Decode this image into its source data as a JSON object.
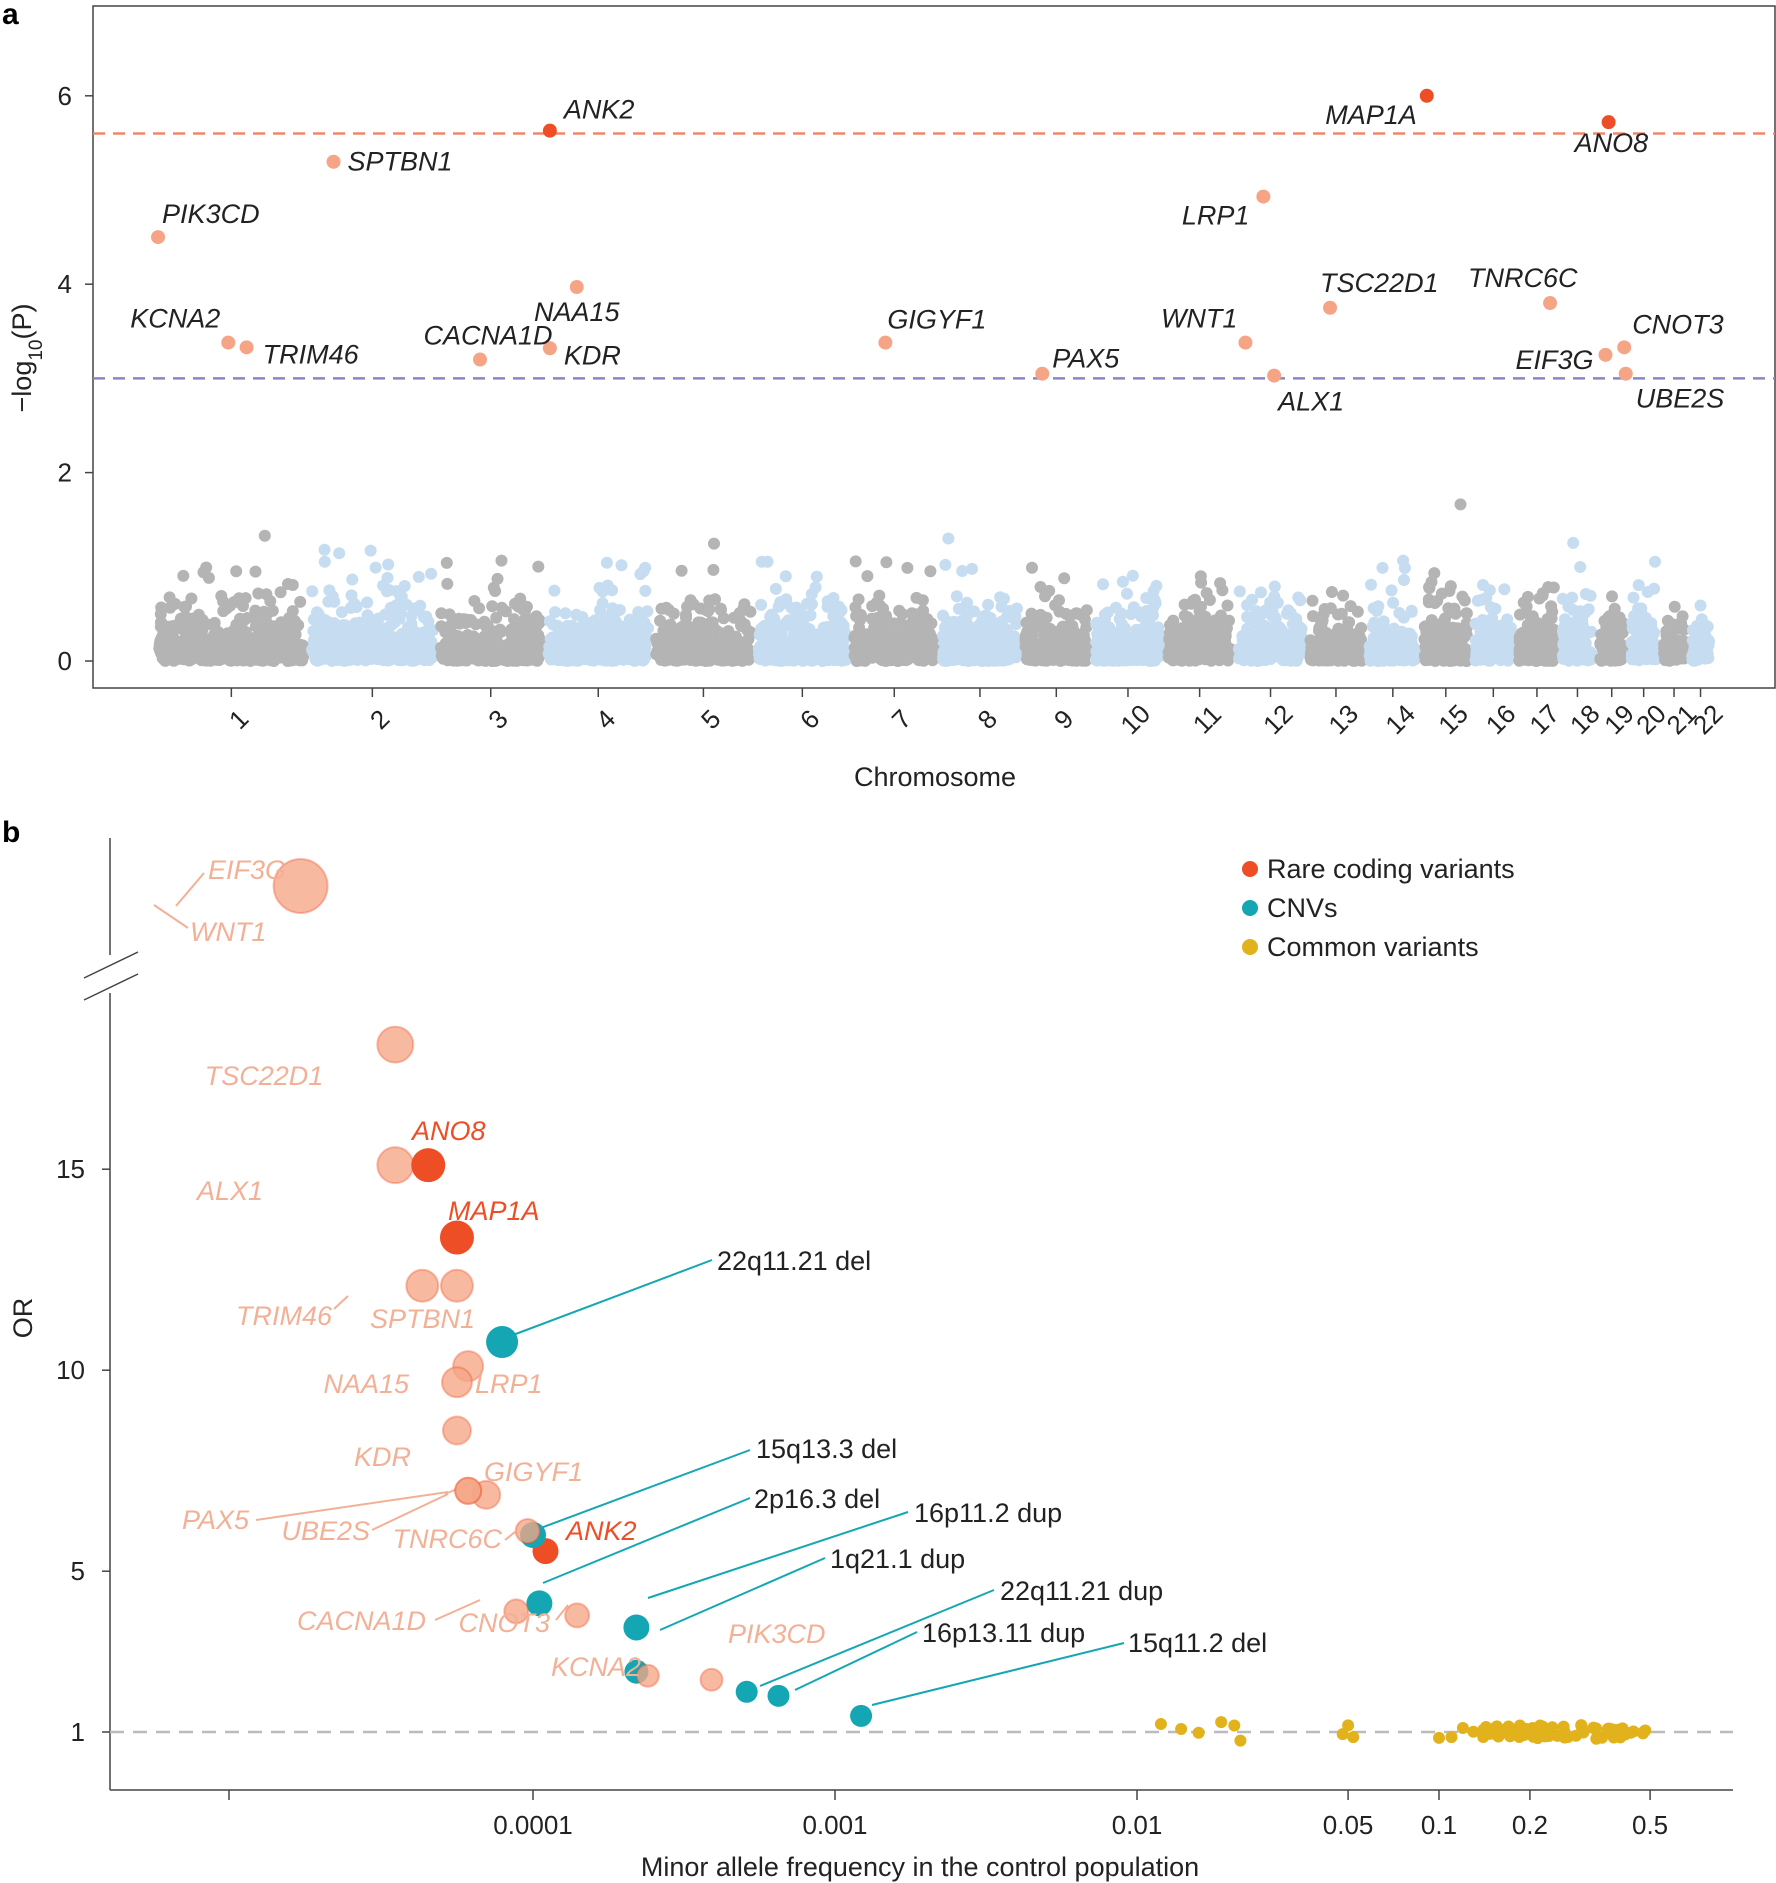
{
  "colors": {
    "rare": "#ee4e26",
    "rare_light": "#f5a585",
    "rare_text_light": "#f2b196",
    "cnv": "#14a7b3",
    "common": "#e1b21b",
    "chr_gray": "#b4b4b4",
    "chr_blue": "#c6dcf0",
    "sig_line": "#f0876b",
    "sugg_line": "#8a86c8",
    "null_line": "#bbbbbb"
  },
  "panel_a": {
    "label": "a",
    "ylabel_pre": "−log",
    "ylabel_sub": "10",
    "ylabel_post": "(P)",
    "xlabel": "Chromosome",
    "yticks": [
      "0",
      "2",
      "4",
      "6"
    ],
    "ylim": [
      0,
      6.8
    ],
    "significance_line": 5.6,
    "suggestive_line": 3.0,
    "chromosome_labels": [
      "1",
      "2",
      "3",
      "4",
      "5",
      "6",
      "7",
      "8",
      "9",
      "10",
      "11",
      "12",
      "13",
      "14",
      "15",
      "16",
      "17",
      "18",
      "19",
      "20",
      "21",
      "22"
    ],
    "chromosome_spans": [
      [
        0.0,
        0.098
      ],
      [
        0.098,
        0.181
      ],
      [
        0.181,
        0.25
      ],
      [
        0.25,
        0.319
      ],
      [
        0.319,
        0.385
      ],
      [
        0.385,
        0.446
      ],
      [
        0.446,
        0.503
      ],
      [
        0.503,
        0.556
      ],
      [
        0.556,
        0.601
      ],
      [
        0.601,
        0.648
      ],
      [
        0.648,
        0.693
      ],
      [
        0.693,
        0.739
      ],
      [
        0.739,
        0.777
      ],
      [
        0.777,
        0.812
      ],
      [
        0.812,
        0.845
      ],
      [
        0.845,
        0.873
      ],
      [
        0.873,
        0.901
      ],
      [
        0.901,
        0.925
      ],
      [
        0.925,
        0.945
      ],
      [
        0.945,
        0.966
      ],
      [
        0.966,
        0.984
      ],
      [
        0.984,
        1.0
      ]
    ],
    "genes": [
      {
        "name": "ANK2",
        "chr": 4,
        "pos": 0.05,
        "p": 5.63,
        "status": "sig"
      },
      {
        "name": "MAP1A",
        "chr": 15,
        "pos": 0.13,
        "p": 6.0,
        "status": "sig"
      },
      {
        "name": "ANO8",
        "chr": 19,
        "pos": 0.4,
        "p": 5.72,
        "status": "sig"
      },
      {
        "name": "SPTBN1",
        "chr": 2,
        "pos": 0.2,
        "p": 5.3,
        "status": "sugg"
      },
      {
        "name": "PIK3CD",
        "chr": 1,
        "pos": 0.02,
        "p": 4.5,
        "status": "sugg"
      },
      {
        "name": "LRP1",
        "chr": 12,
        "pos": 0.4,
        "p": 4.93,
        "status": "sugg"
      },
      {
        "name": "KCNA2",
        "chr": 1,
        "pos": 0.48,
        "p": 3.38,
        "status": "sugg"
      },
      {
        "name": "TRIM46",
        "chr": 1,
        "pos": 0.6,
        "p": 3.33,
        "status": "sugg"
      },
      {
        "name": "CACNA1D",
        "chr": 3,
        "pos": 0.4,
        "p": 3.2,
        "status": "sugg"
      },
      {
        "name": "NAA15",
        "chr": 4,
        "pos": 0.3,
        "p": 3.97,
        "status": "sugg"
      },
      {
        "name": "KDR",
        "chr": 4,
        "pos": 0.05,
        "p": 3.32,
        "status": "sugg"
      },
      {
        "name": "GIGYF1",
        "chr": 7,
        "pos": 0.4,
        "p": 3.38,
        "status": "sugg"
      },
      {
        "name": "PAX5",
        "chr": 9,
        "pos": 0.3,
        "p": 3.05,
        "status": "sugg"
      },
      {
        "name": "WNT1",
        "chr": 12,
        "pos": 0.15,
        "p": 3.38,
        "status": "sugg"
      },
      {
        "name": "ALX1",
        "chr": 12,
        "pos": 0.55,
        "p": 3.03,
        "status": "sugg"
      },
      {
        "name": "TSC22D1",
        "chr": 13,
        "pos": 0.4,
        "p": 3.75,
        "status": "sugg"
      },
      {
        "name": "TNRC6C",
        "chr": 17,
        "pos": 0.8,
        "p": 3.8,
        "status": "sugg"
      },
      {
        "name": "EIF3G",
        "chr": 19,
        "pos": 0.3,
        "p": 3.25,
        "status": "sugg"
      },
      {
        "name": "CNOT3",
        "chr": 19,
        "pos": 0.9,
        "p": 3.33,
        "status": "sugg"
      },
      {
        "name": "UBE2S",
        "chr": 19,
        "pos": 0.95,
        "p": 3.05,
        "status": "sugg"
      }
    ]
  },
  "panel_b": {
    "label": "b",
    "ylabel": "OR",
    "xlabel": "Minor allele frequency in the control population",
    "yticks": [
      "1",
      "5",
      "10",
      "15"
    ],
    "xticks": [
      "0.0001",
      "0.001",
      "0.01",
      "0.05",
      "0.1",
      "0.2",
      "0.5"
    ],
    "legend": [
      {
        "label": "Rare coding variants",
        "color_key": "rare"
      },
      {
        "label": "CNVs",
        "color_key": "cnv"
      },
      {
        "label": "Common variants",
        "color_key": "common"
      }
    ],
    "points": [
      {
        "label": "EIF3G",
        "group": "rare_light",
        "maf": 1.7e-05,
        "or": 24.0,
        "size": 27
      },
      {
        "label": "WNT1",
        "group": "rare_light",
        "maf": 1.7e-05,
        "or": 24.0,
        "size": 0
      },
      {
        "label": "TSC22D1",
        "group": "rare_light",
        "maf": 3.5e-05,
        "or": 18.1,
        "size": 18
      },
      {
        "label": "ALX1",
        "group": "rare_light",
        "maf": 3.5e-05,
        "or": 15.1,
        "size": 18
      },
      {
        "label": "ANO8",
        "group": "rare",
        "maf": 4.5e-05,
        "or": 15.1,
        "size": 17
      },
      {
        "label": "MAP1A",
        "group": "rare",
        "maf": 5.6e-05,
        "or": 13.3,
        "size": 17
      },
      {
        "label": "TRIM46",
        "group": "rare_light",
        "maf": 4.3e-05,
        "or": 12.1,
        "size": 16
      },
      {
        "label": "SPTBN1",
        "group": "rare_light",
        "maf": 5.6e-05,
        "or": 12.1,
        "size": 16
      },
      {
        "label": "LRP1",
        "group": "rare_light",
        "maf": 6.1e-05,
        "or": 10.1,
        "size": 15
      },
      {
        "label": "NAA15",
        "group": "rare_light",
        "maf": 5.6e-05,
        "or": 9.7,
        "size": 15
      },
      {
        "label": "KDR",
        "group": "rare_light",
        "maf": 5.6e-05,
        "or": 8.5,
        "size": 14
      },
      {
        "label": "GIGYF1",
        "group": "rare_light",
        "maf": 7e-05,
        "or": 6.9,
        "size": 14
      },
      {
        "label": "PAX5",
        "group": "rare_light",
        "maf": 6.1e-05,
        "or": 7.0,
        "size": 13
      },
      {
        "label": "UBE2S",
        "group": "rare_light",
        "maf": 6.1e-05,
        "or": 7.0,
        "size": 13
      },
      {
        "label": "TNRC6C",
        "group": "rare_light",
        "maf": 9.6e-05,
        "or": 6.0,
        "size": 12
      },
      {
        "label": "ANK2",
        "group": "rare",
        "maf": 0.00011,
        "or": 5.5,
        "size": 13
      },
      {
        "label": "CACNA1D",
        "group": "rare_light",
        "maf": 8.8e-05,
        "or": 4.0,
        "size": 12
      },
      {
        "label": "CNOT3",
        "group": "rare_light",
        "maf": 0.00014,
        "or": 3.9,
        "size": 12
      },
      {
        "label": "KCNA2",
        "group": "rare_light",
        "maf": 0.00024,
        "or": 2.4,
        "size": 11
      },
      {
        "label": "PIK3CD",
        "group": "rare_light",
        "maf": 0.00039,
        "or": 2.3,
        "size": 11
      },
      {
        "label": "22q11.21 del",
        "group": "cnv",
        "maf": 7.9e-05,
        "or": 10.7,
        "size": 16
      },
      {
        "label": "15q13.3 del",
        "group": "cnv",
        "maf": 0.0001,
        "or": 5.9,
        "size": 13
      },
      {
        "label": "2p16.3 del",
        "group": "cnv",
        "maf": 0.000105,
        "or": 4.2,
        "size": 13
      },
      {
        "label": "16p11.2 dup",
        "group": "cnv",
        "maf": 0.00022,
        "or": 3.6,
        "size": 13
      },
      {
        "label": "1q21.1 dup",
        "group": "cnv",
        "maf": 0.00022,
        "or": 2.5,
        "size": 12
      },
      {
        "label": "22q11.21 dup",
        "group": "cnv",
        "maf": 0.00051,
        "or": 2.0,
        "size": 11
      },
      {
        "label": "16p13.11 dup",
        "group": "cnv",
        "maf": 0.00065,
        "or": 1.9,
        "size": 11
      },
      {
        "label": "15q11.2 del",
        "group": "cnv",
        "maf": 0.00122,
        "or": 1.4,
        "size": 11
      }
    ]
  }
}
